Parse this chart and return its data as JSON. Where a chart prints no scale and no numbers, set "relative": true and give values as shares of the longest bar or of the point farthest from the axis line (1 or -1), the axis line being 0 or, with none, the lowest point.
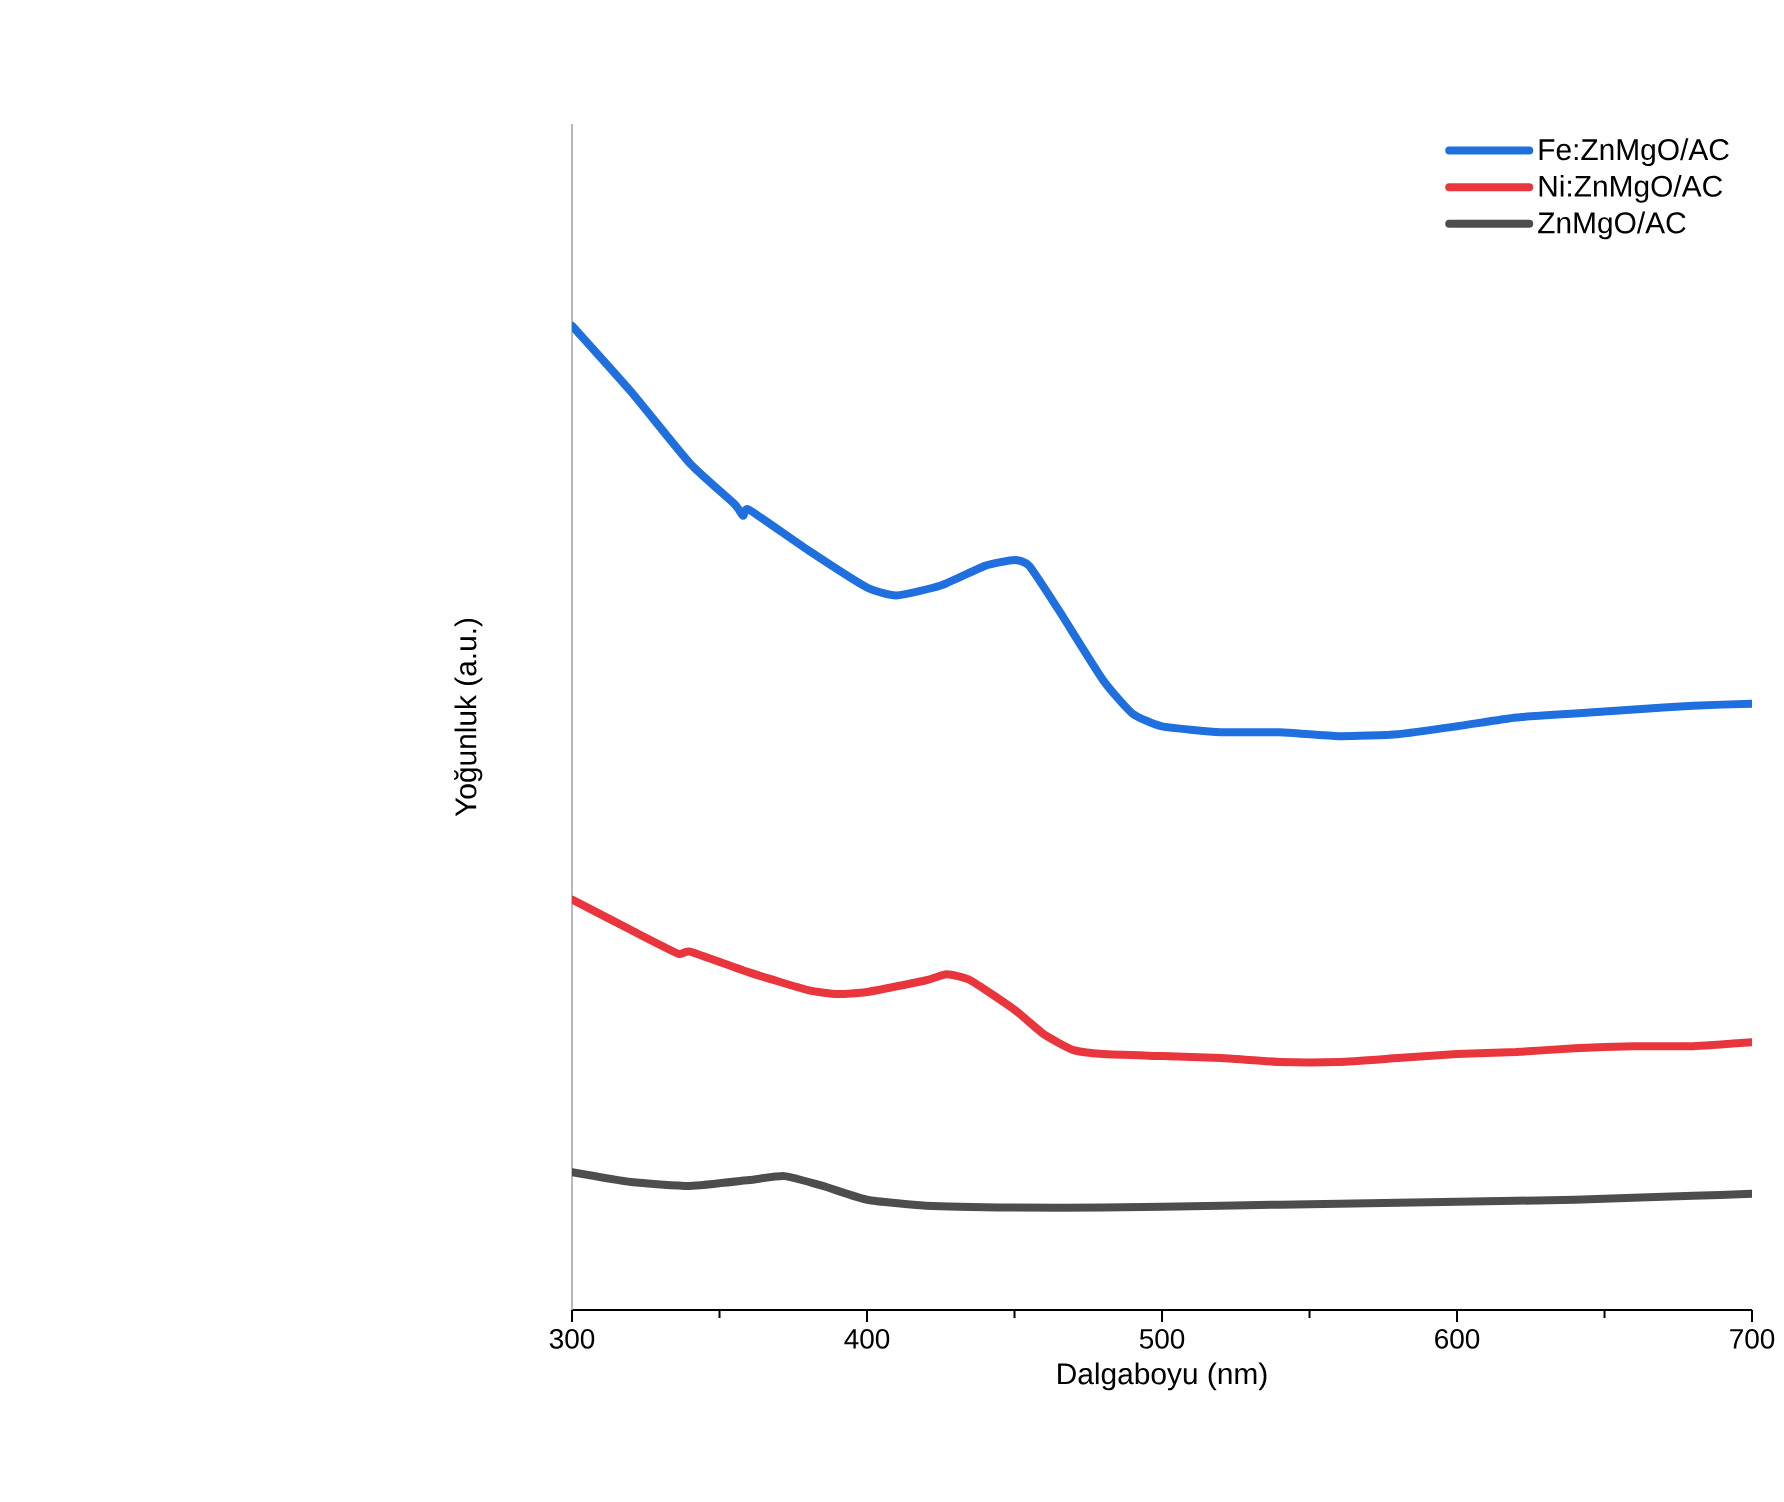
{
  "chart_data": {
    "type": "line",
    "relative": true,
    "xlabel": "Dalgaboyu (nm)",
    "ylabel": "Yoğunluk (a.u.)",
    "xlim": [
      300,
      700
    ],
    "xticks": [
      300,
      400,
      500,
      600,
      700
    ],
    "legend": "top right",
    "series": [
      {
        "name": "Fe:ZnMgO/AC",
        "color": "#1f6fdf",
        "x": [
          300,
          320,
          340,
          355,
          358,
          360,
          380,
          400,
          410,
          425,
          440,
          450,
          455,
          465,
          480,
          490,
          500,
          520,
          540,
          560,
          580,
          600,
          620,
          640,
          660,
          680,
          700
        ],
        "values": [
          1.0,
          0.933,
          0.86,
          0.819,
          0.807,
          0.813,
          0.772,
          0.734,
          0.726,
          0.736,
          0.756,
          0.762,
          0.756,
          0.711,
          0.64,
          0.606,
          0.593,
          0.587,
          0.587,
          0.583,
          0.585,
          0.593,
          0.602,
          0.606,
          0.61,
          0.614,
          0.616
        ]
      },
      {
        "name": "Ni:ZnMgO/AC",
        "color": "#e8363c",
        "x": [
          300,
          320,
          336,
          340,
          360,
          380,
          390,
          400,
          420,
          427,
          435,
          450,
          460,
          470,
          480,
          500,
          520,
          540,
          560,
          580,
          600,
          620,
          640,
          660,
          680,
          700
        ],
        "values": [
          0.417,
          0.386,
          0.362,
          0.364,
          0.343,
          0.325,
          0.321,
          0.323,
          0.335,
          0.341,
          0.335,
          0.305,
          0.28,
          0.264,
          0.26,
          0.258,
          0.256,
          0.252,
          0.252,
          0.256,
          0.26,
          0.262,
          0.266,
          0.268,
          0.268,
          0.272
        ]
      },
      {
        "name": "ZnMgO/AC",
        "color": "#4d4d4d",
        "x": [
          300,
          320,
          340,
          360,
          372,
          385,
          400,
          420,
          450,
          480,
          520,
          560,
          600,
          640,
          680,
          700
        ],
        "values": [
          0.14,
          0.13,
          0.126,
          0.132,
          0.136,
          0.126,
          0.112,
          0.106,
          0.104,
          0.104,
          0.106,
          0.108,
          0.11,
          0.112,
          0.116,
          0.118
        ]
      }
    ]
  }
}
